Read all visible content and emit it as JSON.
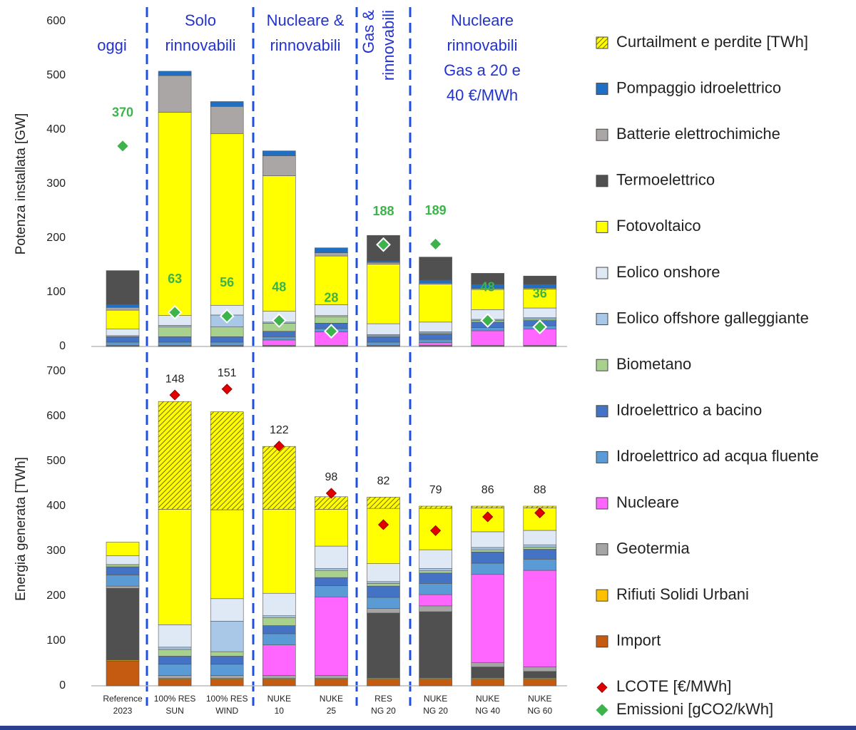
{
  "chart_data": {
    "type": "stacked_bar",
    "categories": [
      [
        "Reference",
        "2023"
      ],
      [
        "100% RES",
        "SUN"
      ],
      [
        "100% RES",
        "WIND"
      ],
      [
        "NUKE",
        "10"
      ],
      [
        "NUKE",
        "25"
      ],
      [
        "RES",
        "NG 20"
      ],
      [
        "NUKE",
        "NG 20"
      ],
      [
        "NUKE",
        "NG 40"
      ],
      [
        "NUKE",
        "NG 60"
      ]
    ],
    "sections": [
      [
        "oggi"
      ],
      [
        "Solo",
        "rinnovabili"
      ],
      [
        "Nucleare &",
        "rinnovabili"
      ],
      [
        "Gas &",
        "rinnovabili"
      ],
      [
        "Nucleare",
        "rinnovabili",
        "Gas a 20 e",
        "40 €/MWh"
      ]
    ],
    "panels": [
      {
        "ylabel": "Potenza installata [GW]",
        "ylim": [
          0,
          600
        ],
        "yticks": [
          0,
          100,
          200,
          300,
          400,
          500,
          600
        ]
      },
      {
        "ylabel": "Energia generata [TWh]",
        "ylim": [
          0,
          700
        ],
        "yticks": [
          0,
          100,
          200,
          300,
          400,
          500,
          600,
          700
        ]
      }
    ],
    "series": [
      {
        "name": "Curtailment e perdite [TWh]",
        "color": "#ffff00",
        "hatch": "#7a6a00",
        "energy": [
          0,
          240,
          218,
          140,
          28,
          25,
          5,
          4,
          4
        ]
      },
      {
        "name": "Pompaggio idroelettrico",
        "color": "#1f6fc5",
        "capacity": [
          6,
          8,
          9,
          9,
          9,
          3,
          6,
          8,
          7
        ]
      },
      {
        "name": "Batterie elettrochimiche",
        "color": "#aba6a6",
        "capacity": [
          5,
          68,
          50,
          37,
          6,
          3,
          2,
          2,
          2
        ]
      },
      {
        "name": "Termoelettrico",
        "color": "#505050",
        "capacity": [
          62,
          0,
          0,
          0,
          0,
          47,
          42,
          20,
          15
        ],
        "energy": [
          160,
          0,
          0,
          0,
          0,
          145,
          148,
          25,
          15
        ]
      },
      {
        "name": "Fotovoltaico",
        "color": "#ffff00",
        "capacity": [
          35,
          375,
          317,
          250,
          90,
          110,
          70,
          37,
          35
        ],
        "energy": [
          30,
          257,
          198,
          187,
          82,
          123,
          92,
          53,
          50
        ]
      },
      {
        "name": "Eolico onshore",
        "color": "#dfe9f6",
        "capacity": [
          12,
          18,
          18,
          20,
          20,
          20,
          18,
          18,
          18
        ],
        "energy": [
          20,
          50,
          50,
          50,
          50,
          40,
          42,
          35,
          32
        ]
      },
      {
        "name": "Eolico offshore galleggiante",
        "color": "#a9c8e8",
        "capacity": [
          0,
          3,
          22,
          2,
          2,
          2,
          2,
          2,
          2
        ],
        "energy": [
          0,
          5,
          68,
          4,
          4,
          4,
          5,
          5,
          5
        ]
      },
      {
        "name": "Biometano",
        "color": "#a9d18e",
        "capacity": [
          2,
          18,
          18,
          15,
          12,
          2,
          2,
          3,
          3
        ],
        "energy": [
          5,
          15,
          10,
          18,
          16,
          6,
          5,
          5,
          5
        ]
      },
      {
        "name": "Idroelettrico a bacino",
        "color": "#4472c4",
        "capacity": [
          10,
          10,
          10,
          10,
          10,
          10,
          10,
          10,
          10
        ],
        "energy": [
          18,
          18,
          18,
          18,
          18,
          25,
          23,
          25,
          22
        ]
      },
      {
        "name": "Idroelettrico ad acqua fluente",
        "color": "#5b9bd5",
        "capacity": [
          6,
          6,
          6,
          6,
          6,
          6,
          6,
          6,
          6
        ],
        "energy": [
          25,
          25,
          25,
          25,
          25,
          25,
          25,
          25,
          25
        ]
      },
      {
        "name": "Nucleare",
        "color": "#ff66ff",
        "capacity": [
          0,
          0,
          0,
          10,
          25,
          0,
          5,
          27,
          30
        ],
        "energy": [
          0,
          0,
          0,
          68,
          175,
          0,
          25,
          196,
          215
        ]
      },
      {
        "name": "Geotermia",
        "color": "#a5a5a5",
        "capacity": [
          1,
          1,
          1,
          1,
          1,
          1,
          1,
          1,
          1
        ],
        "energy": [
          5,
          6,
          6,
          6,
          6,
          10,
          13,
          10,
          10
        ]
      },
      {
        "name": "Rifiuti Solidi Urbani",
        "color": "#ffc000",
        "capacity": [
          1,
          1,
          1,
          1,
          1,
          1,
          1,
          1,
          1
        ],
        "energy": [
          2,
          2,
          2,
          2,
          2,
          2,
          2,
          2,
          2
        ]
      },
      {
        "name": "Import",
        "color": "#c55a11",
        "energy": [
          55,
          15,
          15,
          15,
          15,
          15,
          15,
          15,
          15
        ]
      }
    ],
    "markers": [
      {
        "name": "LCOTE [€/MWh]",
        "color": "#e00000",
        "y2lim": [
          0,
          160
        ],
        "values": [
          null,
          148,
          151,
          122,
          98,
          82,
          79,
          86,
          88
        ]
      },
      {
        "name": "Emissioni [gCO2/kWh]",
        "color": "#3cb44b",
        "values": [
          370,
          63,
          56,
          48,
          28,
          188,
          189,
          48,
          36
        ]
      }
    ]
  }
}
